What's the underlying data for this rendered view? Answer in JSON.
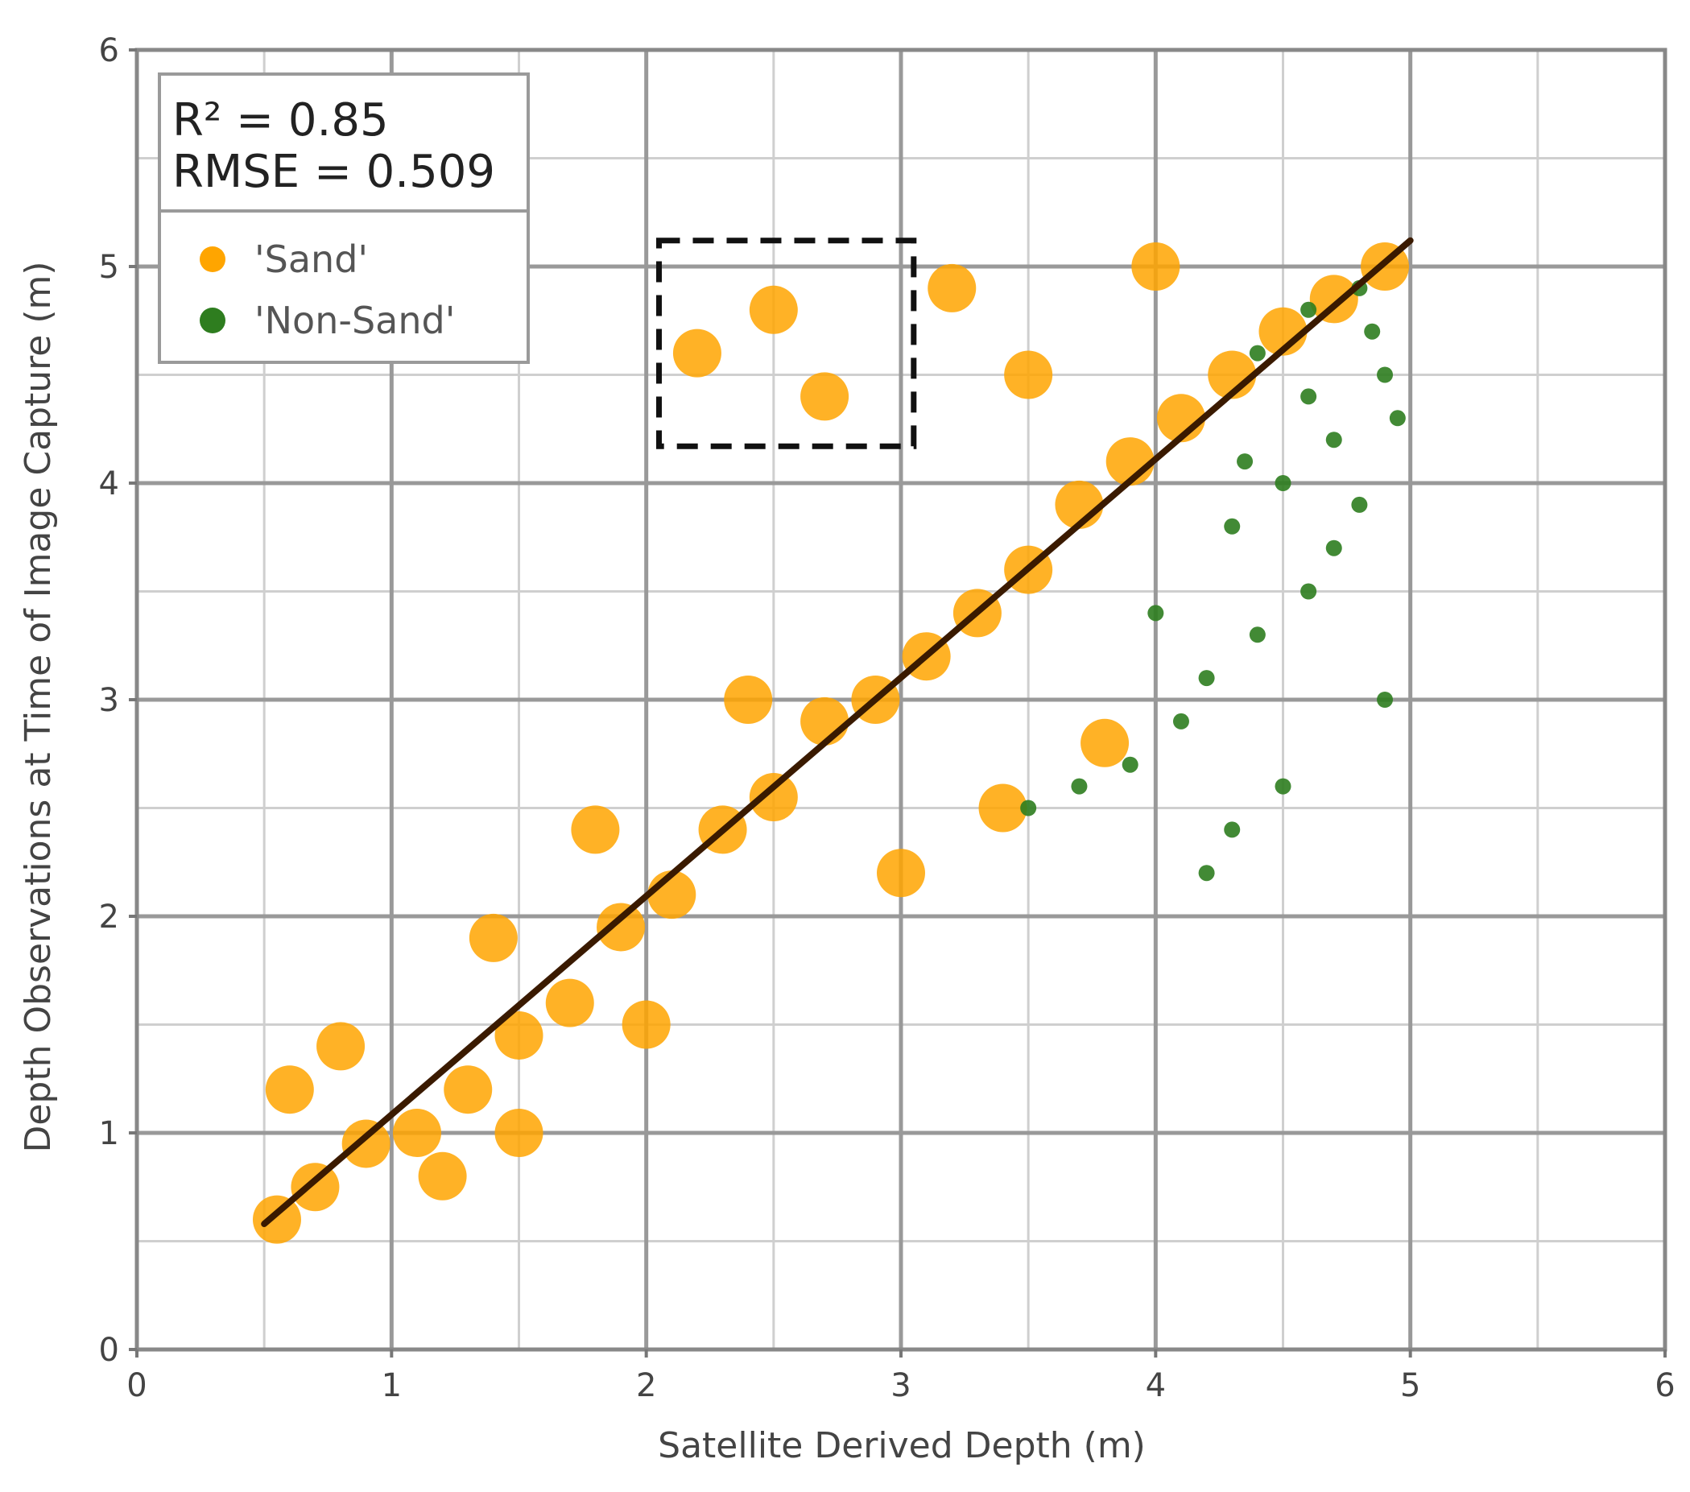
{
  "chart_data": {
    "type": "scatter",
    "title": "",
    "xlabel": "Satellite Derived Depth (m)",
    "ylabel": "Depth Observations at Time of Image Capture (m)",
    "xlim": [
      0,
      6
    ],
    "ylim": [
      0,
      6
    ],
    "x_ticks": [
      "0",
      "1",
      "2",
      "3",
      "4",
      "5",
      "6"
    ],
    "y_ticks": [
      "0",
      "1",
      "2",
      "3",
      "4",
      "5",
      "6"
    ],
    "grid": true,
    "legend_position": "top-left",
    "stats": {
      "r2": "R² = 0.85",
      "rmse": "RMSE = 0.509"
    },
    "series": [
      {
        "name": "'Sand'",
        "color": "#FFA500",
        "points": [
          [
            0.55,
            0.6
          ],
          [
            0.7,
            0.75
          ],
          [
            0.9,
            0.95
          ],
          [
            1.1,
            1.0
          ],
          [
            1.3,
            1.2
          ],
          [
            1.5,
            1.45
          ],
          [
            1.7,
            1.6
          ],
          [
            1.9,
            1.95
          ],
          [
            2.1,
            2.1
          ],
          [
            2.3,
            2.4
          ],
          [
            2.5,
            2.55
          ],
          [
            2.7,
            2.9
          ],
          [
            2.9,
            3.0
          ],
          [
            3.1,
            3.2
          ],
          [
            3.3,
            3.4
          ],
          [
            3.5,
            3.6
          ],
          [
            3.7,
            3.9
          ],
          [
            3.9,
            4.1
          ],
          [
            4.1,
            4.3
          ],
          [
            4.3,
            4.5
          ],
          [
            4.5,
            4.7
          ],
          [
            4.7,
            4.85
          ],
          [
            4.9,
            5.0
          ],
          [
            0.6,
            1.2
          ],
          [
            0.8,
            1.4
          ],
          [
            1.2,
            0.8
          ],
          [
            1.5,
            1.0
          ],
          [
            2.0,
            1.5
          ],
          [
            2.2,
            4.6
          ],
          [
            2.5,
            4.8
          ],
          [
            2.7,
            4.4
          ],
          [
            3.2,
            4.9
          ],
          [
            3.5,
            4.5
          ],
          [
            4.0,
            5.0
          ],
          [
            3.8,
            2.8
          ],
          [
            3.4,
            2.5
          ],
          [
            3.0,
            2.2
          ],
          [
            2.4,
            3.0
          ],
          [
            1.8,
            2.4
          ],
          [
            1.4,
            1.9
          ]
        ]
      },
      {
        "name": "'Non-Sand'",
        "color": "#2E7D1F",
        "points": [
          [
            4.4,
            4.6
          ],
          [
            4.6,
            4.8
          ],
          [
            4.8,
            4.9
          ],
          [
            4.9,
            4.5
          ],
          [
            4.7,
            4.2
          ],
          [
            4.5,
            4.0
          ],
          [
            4.3,
            3.8
          ],
          [
            4.8,
            3.9
          ],
          [
            4.6,
            3.5
          ],
          [
            4.4,
            3.3
          ],
          [
            4.2,
            3.1
          ],
          [
            4.0,
            3.4
          ],
          [
            4.1,
            2.9
          ],
          [
            3.9,
            2.7
          ],
          [
            3.7,
            2.6
          ],
          [
            3.5,
            2.5
          ],
          [
            4.3,
            2.4
          ],
          [
            4.5,
            2.6
          ],
          [
            4.2,
            2.2
          ],
          [
            4.9,
            3.0
          ],
          [
            4.7,
            3.7
          ],
          [
            4.95,
            4.3
          ],
          [
            4.85,
            4.7
          ],
          [
            4.6,
            4.4
          ],
          [
            4.35,
            4.1
          ]
        ]
      }
    ],
    "fit_line": {
      "x": [
        0.5,
        5.0
      ],
      "y": [
        0.58,
        5.12
      ]
    },
    "highlight_box": {
      "x": [
        2.05,
        3.05
      ],
      "y": [
        4.17,
        5.12
      ]
    }
  }
}
